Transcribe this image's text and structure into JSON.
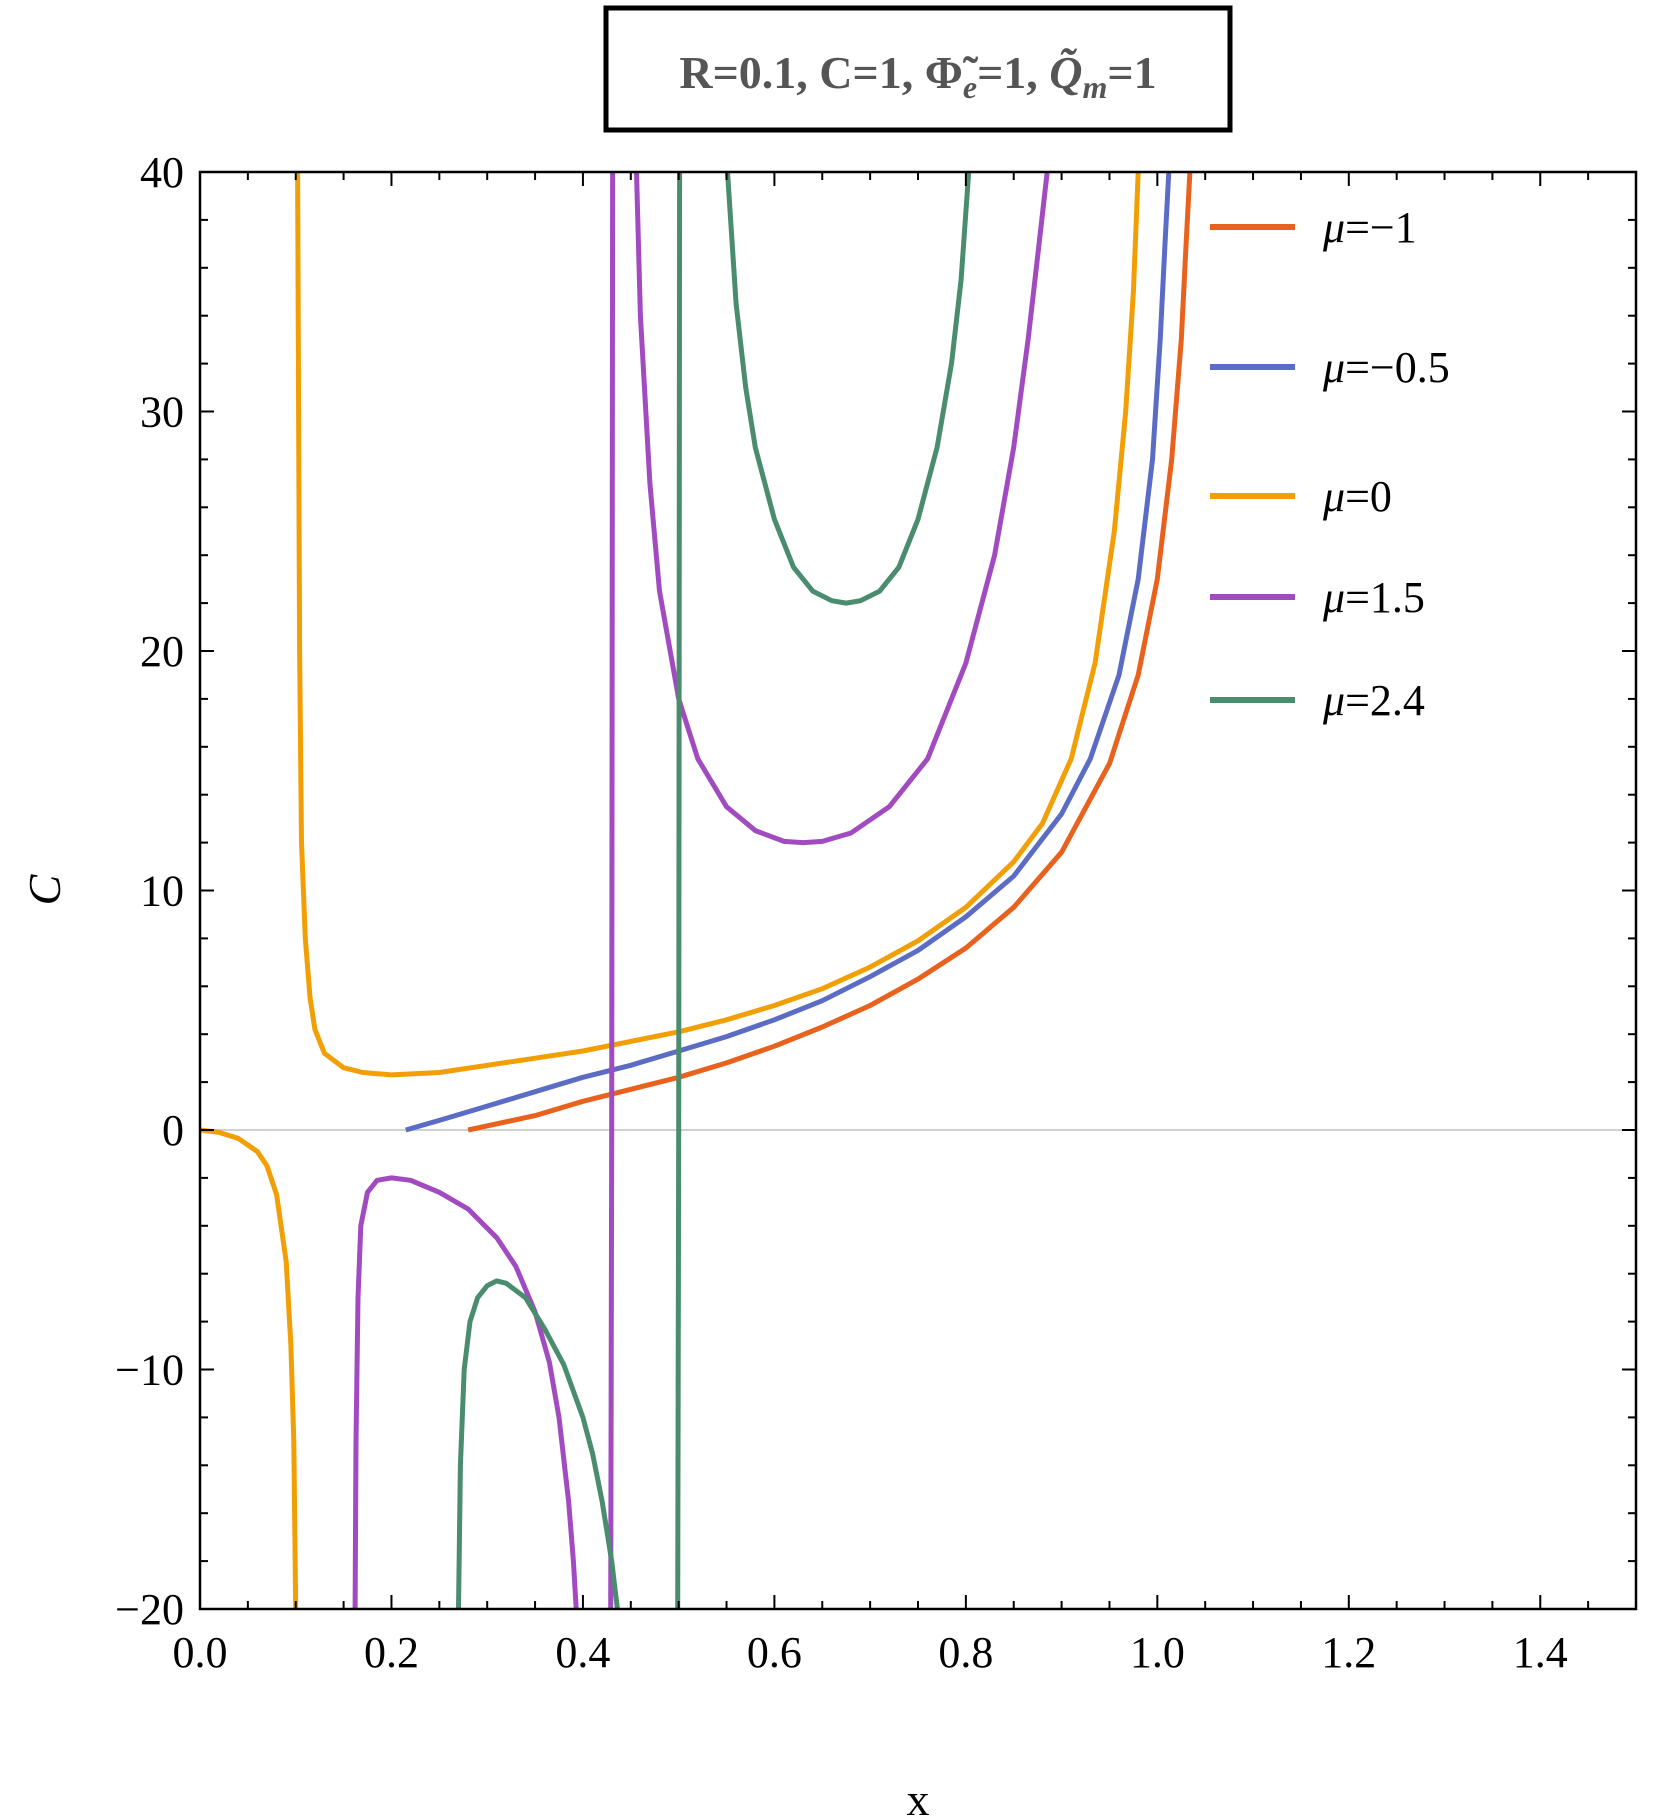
{
  "chart_data": {
    "type": "line",
    "title_box": {
      "text": "R=0.1, C=1, Φ̃e=1, Q̃m=1",
      "parts": {
        "prefix": "R=0.1, C=1, ",
        "phi": "Φ̃",
        "phi_sub": "e",
        "phi_eq": "=1, ",
        "q": "Q̃",
        "q_sub": "m",
        "q_eq": "=1"
      }
    },
    "xlabel": "x",
    "ylabel": "C",
    "xlim": [
      0.0,
      1.5
    ],
    "ylim": [
      -20,
      40
    ],
    "xticks": [
      {
        "value": 0.0,
        "label": "0.0"
      },
      {
        "value": 0.2,
        "label": "0.2"
      },
      {
        "value": 0.4,
        "label": "0.4"
      },
      {
        "value": 0.6,
        "label": "0.6"
      },
      {
        "value": 0.8,
        "label": "0.8"
      },
      {
        "value": 1.0,
        "label": "1.0"
      },
      {
        "value": 1.2,
        "label": "1.2"
      },
      {
        "value": 1.4,
        "label": "1.4"
      }
    ],
    "yticks": [
      {
        "value": -20,
        "label": "−20"
      },
      {
        "value": -10,
        "label": "−10"
      },
      {
        "value": 0,
        "label": "0"
      },
      {
        "value": 10,
        "label": "10"
      },
      {
        "value": 20,
        "label": "20"
      },
      {
        "value": 30,
        "label": "30"
      },
      {
        "value": 40,
        "label": "40"
      }
    ],
    "grid": false,
    "zero_line": true,
    "legend_position": "top-right",
    "series": [
      {
        "name": "μ=−1",
        "legend_prefix": "μ",
        "legend_value": "=−1",
        "color": "#E8621E",
        "segments": [
          [
            [
              0.28,
              0.0
            ],
            [
              0.35,
              0.6
            ],
            [
              0.4,
              1.2
            ],
            [
              0.45,
              1.7
            ],
            [
              0.5,
              2.2
            ],
            [
              0.55,
              2.8
            ],
            [
              0.6,
              3.5
            ],
            [
              0.65,
              4.3
            ],
            [
              0.7,
              5.2
            ],
            [
              0.75,
              6.3
            ],
            [
              0.8,
              7.6
            ],
            [
              0.85,
              9.3
            ],
            [
              0.9,
              11.6
            ],
            [
              0.95,
              15.3
            ],
            [
              0.98,
              19.0
            ],
            [
              1.0,
              23.0
            ],
            [
              1.015,
              28.0
            ],
            [
              1.025,
              33.0
            ],
            [
              1.03,
              37.0
            ],
            [
              1.034,
              40.0
            ]
          ]
        ]
      },
      {
        "name": "μ=−0.5",
        "legend_prefix": "μ",
        "legend_value": "=−0.5",
        "color": "#5B6CC4",
        "segments": [
          [
            [
              0.215,
              0.0
            ],
            [
              0.25,
              0.4
            ],
            [
              0.3,
              1.0
            ],
            [
              0.35,
              1.6
            ],
            [
              0.4,
              2.2
            ],
            [
              0.45,
              2.7
            ],
            [
              0.5,
              3.3
            ],
            [
              0.55,
              3.9
            ],
            [
              0.6,
              4.6
            ],
            [
              0.65,
              5.4
            ],
            [
              0.7,
              6.4
            ],
            [
              0.75,
              7.5
            ],
            [
              0.8,
              8.9
            ],
            [
              0.85,
              10.6
            ],
            [
              0.9,
              13.2
            ],
            [
              0.93,
              15.5
            ],
            [
              0.96,
              19.0
            ],
            [
              0.98,
              23.0
            ],
            [
              0.995,
              28.0
            ],
            [
              1.003,
              33.0
            ],
            [
              1.008,
              37.0
            ],
            [
              1.012,
              40.0
            ]
          ]
        ]
      },
      {
        "name": "μ=0",
        "legend_prefix": "μ",
        "legend_value": "=0",
        "color": "#F29F05",
        "segments": [
          [
            [
              0.0,
              0.0
            ],
            [
              0.02,
              -0.1
            ],
            [
              0.04,
              -0.35
            ],
            [
              0.06,
              -0.9
            ],
            [
              0.07,
              -1.5
            ],
            [
              0.08,
              -2.7
            ],
            [
              0.09,
              -5.5
            ],
            [
              0.095,
              -9.0
            ],
            [
              0.098,
              -13.0
            ],
            [
              0.1,
              -20.0
            ]
          ],
          [
            [
              0.102,
              40.0
            ],
            [
              0.104,
              20.0
            ],
            [
              0.106,
              12.0
            ],
            [
              0.11,
              8.0
            ],
            [
              0.115,
              5.5
            ],
            [
              0.12,
              4.2
            ],
            [
              0.13,
              3.2
            ],
            [
              0.15,
              2.6
            ],
            [
              0.17,
              2.4
            ],
            [
              0.2,
              2.3
            ],
            [
              0.25,
              2.4
            ],
            [
              0.3,
              2.7
            ],
            [
              0.35,
              3.0
            ],
            [
              0.4,
              3.3
            ],
            [
              0.45,
              3.7
            ],
            [
              0.5,
              4.1
            ],
            [
              0.55,
              4.6
            ],
            [
              0.6,
              5.2
            ],
            [
              0.65,
              5.9
            ],
            [
              0.7,
              6.8
            ],
            [
              0.75,
              7.9
            ],
            [
              0.8,
              9.3
            ],
            [
              0.85,
              11.2
            ],
            [
              0.88,
              12.8
            ],
            [
              0.91,
              15.5
            ],
            [
              0.935,
              19.5
            ],
            [
              0.955,
              25.0
            ],
            [
              0.967,
              30.0
            ],
            [
              0.975,
              35.0
            ],
            [
              0.98,
              40.0
            ]
          ]
        ]
      },
      {
        "name": "μ=1.5",
        "legend_prefix": "μ",
        "legend_value": "=1.5",
        "color": "#A24BC0",
        "segments": [
          [
            [
              0.162,
              -20.0
            ],
            [
              0.163,
              -13.0
            ],
            [
              0.165,
              -7.0
            ],
            [
              0.168,
              -4.0
            ],
            [
              0.175,
              -2.6
            ],
            [
              0.185,
              -2.1
            ],
            [
              0.2,
              -2.0
            ],
            [
              0.22,
              -2.1
            ],
            [
              0.25,
              -2.6
            ],
            [
              0.28,
              -3.3
            ],
            [
              0.31,
              -4.5
            ],
            [
              0.33,
              -5.7
            ],
            [
              0.35,
              -7.6
            ],
            [
              0.365,
              -9.7
            ],
            [
              0.375,
              -12.0
            ],
            [
              0.385,
              -15.5
            ],
            [
              0.39,
              -18.0
            ],
            [
              0.393,
              -20.0
            ]
          ],
          [
            [
              0.429,
              -20.0
            ],
            [
              0.43,
              0.0
            ],
            [
              0.431,
              40.0
            ]
          ],
          [
            [
              0.456,
              40.0
            ],
            [
              0.46,
              34.0
            ],
            [
              0.47,
              27.0
            ],
            [
              0.48,
              22.5
            ],
            [
              0.5,
              18.0
            ],
            [
              0.52,
              15.5
            ],
            [
              0.55,
              13.5
            ],
            [
              0.58,
              12.5
            ],
            [
              0.61,
              12.05
            ],
            [
              0.63,
              12.0
            ],
            [
              0.65,
              12.05
            ],
            [
              0.68,
              12.4
            ],
            [
              0.72,
              13.5
            ],
            [
              0.76,
              15.5
            ],
            [
              0.8,
              19.5
            ],
            [
              0.83,
              24.0
            ],
            [
              0.85,
              28.5
            ],
            [
              0.865,
              33.0
            ],
            [
              0.875,
              36.5
            ],
            [
              0.885,
              40.0
            ]
          ]
        ]
      },
      {
        "name": "μ=2.4",
        "legend_prefix": "μ",
        "legend_value": "=2.4",
        "color": "#4A8C6E",
        "segments": [
          [
            [
              0.27,
              -20.0
            ],
            [
              0.272,
              -14.0
            ],
            [
              0.276,
              -10.0
            ],
            [
              0.282,
              -8.0
            ],
            [
              0.29,
              -7.0
            ],
            [
              0.3,
              -6.5
            ],
            [
              0.31,
              -6.3
            ],
            [
              0.32,
              -6.4
            ],
            [
              0.34,
              -7.0
            ],
            [
              0.36,
              -8.3
            ],
            [
              0.38,
              -9.8
            ],
            [
              0.4,
              -12.0
            ],
            [
              0.41,
              -13.5
            ],
            [
              0.42,
              -15.5
            ],
            [
              0.43,
              -18.0
            ],
            [
              0.436,
              -20.0
            ]
          ],
          [
            [
              0.499,
              -20.0
            ],
            [
              0.5,
              0.0
            ],
            [
              0.501,
              40.0
            ]
          ],
          [
            [
              0.551,
              40.0
            ],
            [
              0.56,
              34.5
            ],
            [
              0.57,
              31.0
            ],
            [
              0.58,
              28.5
            ],
            [
              0.6,
              25.5
            ],
            [
              0.62,
              23.5
            ],
            [
              0.64,
              22.5
            ],
            [
              0.66,
              22.1
            ],
            [
              0.675,
              22.0
            ],
            [
              0.69,
              22.1
            ],
            [
              0.71,
              22.5
            ],
            [
              0.73,
              23.5
            ],
            [
              0.75,
              25.5
            ],
            [
              0.77,
              28.5
            ],
            [
              0.785,
              32.0
            ],
            [
              0.795,
              35.5
            ],
            [
              0.803,
              40.0
            ]
          ]
        ]
      }
    ]
  }
}
